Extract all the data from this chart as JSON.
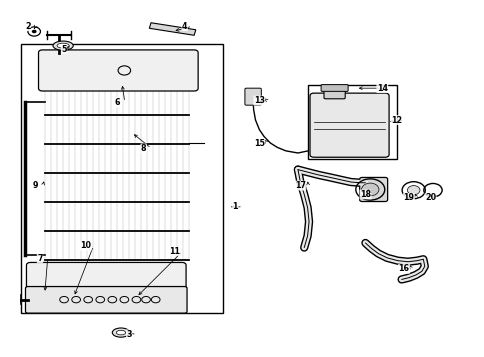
{
  "bg_color": "#ffffff",
  "line_color": "#000000",
  "fig_width": 4.85,
  "fig_height": 3.57,
  "dpi": 100,
  "label_positions": {
    "1": [
      0.485,
      0.42,
      0.47,
      0.42
    ],
    "2": [
      0.055,
      0.93,
      0.065,
      0.915
    ],
    "3": [
      0.265,
      0.06,
      0.255,
      0.065
    ],
    "4": [
      0.38,
      0.93,
      0.355,
      0.915
    ],
    "5": [
      0.13,
      0.865,
      0.128,
      0.875
    ],
    "6": [
      0.24,
      0.715,
      0.25,
      0.77
    ],
    "7": [
      0.08,
      0.275,
      0.09,
      0.175
    ],
    "8": [
      0.295,
      0.585,
      0.27,
      0.63
    ],
    "9": [
      0.07,
      0.48,
      0.09,
      0.5
    ],
    "10": [
      0.175,
      0.31,
      0.15,
      0.165
    ],
    "11": [
      0.36,
      0.295,
      0.28,
      0.165
    ],
    "12": [
      0.82,
      0.665,
      0.8,
      0.66
    ],
    "13": [
      0.535,
      0.72,
      0.54,
      0.73
    ],
    "14": [
      0.79,
      0.755,
      0.735,
      0.755
    ],
    "15": [
      0.535,
      0.6,
      0.545,
      0.61
    ],
    "16": [
      0.835,
      0.245,
      0.845,
      0.255
    ],
    "17": [
      0.62,
      0.48,
      0.635,
      0.5
    ],
    "18": [
      0.755,
      0.455,
      0.755,
      0.475
    ],
    "19": [
      0.845,
      0.445,
      0.855,
      0.465
    ],
    "20": [
      0.89,
      0.445,
      0.89,
      0.455
    ]
  }
}
